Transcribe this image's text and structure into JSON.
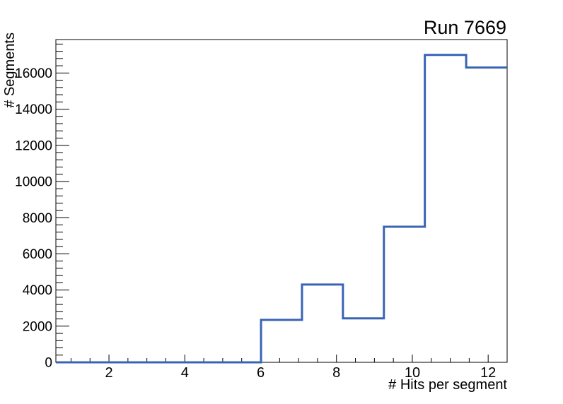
{
  "window": {
    "background": "#ffffff"
  },
  "chart_data": {
    "type": "bar",
    "subtype": "step-histogram",
    "title": "Run 7669",
    "xlabel": "# Hits per segment",
    "ylabel": "# Segments",
    "xlim": [
      0.6,
      12.5
    ],
    "ylim": [
      0,
      17850
    ],
    "bin_edges": [
      0.6,
      1.68,
      2.77,
      3.85,
      4.93,
      6.01,
      7.09,
      8.17,
      9.25,
      10.33,
      11.42,
      12.5
    ],
    "values": [
      0,
      0,
      0,
      0,
      0,
      2350,
      4300,
      2430,
      7500,
      17000,
      16300
    ],
    "x_major_ticks": [
      2,
      4,
      6,
      8,
      10,
      12
    ],
    "x_tick_labels": [
      "2",
      "4",
      "6",
      "8",
      "10",
      "12"
    ],
    "x_minor_step": 0.5,
    "y_major_step": 2000,
    "y_minor_step": 400,
    "y_tick_labels": [
      "0",
      "2000",
      "4000",
      "6000",
      "8000",
      "10000",
      "12000",
      "14000",
      "16000"
    ],
    "grid": false,
    "legend": null,
    "line_color": "#3964b4",
    "line_width": 3,
    "axis_color": "#000000"
  }
}
